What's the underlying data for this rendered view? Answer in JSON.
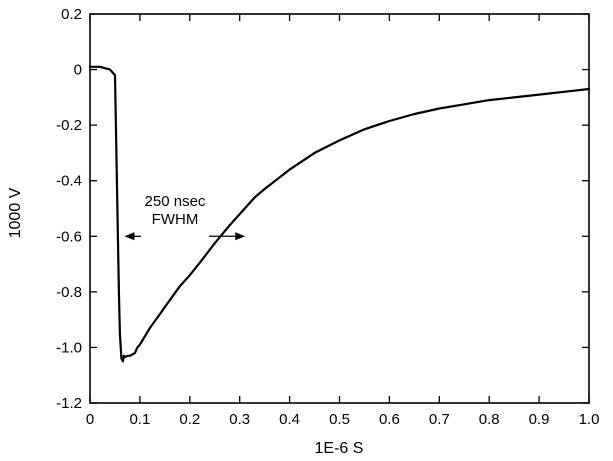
{
  "chart_data": {
    "type": "line",
    "title": "",
    "xlabel": "1E-6 S",
    "ylabel": "1000 V",
    "xlim": [
      0,
      1.0
    ],
    "ylim": [
      -1.2,
      0.2
    ],
    "x_ticks": [
      0,
      0.1,
      0.2,
      0.3,
      0.4,
      0.5,
      0.6,
      0.7,
      0.8,
      0.9,
      1.0
    ],
    "x_tick_labels": [
      "0",
      "0.1",
      "0.2",
      "0.3",
      "0.4",
      "0.5",
      "0.6",
      "0.7",
      "0.8",
      "0.9",
      "1.0"
    ],
    "y_ticks": [
      0.2,
      0,
      -0.2,
      -0.4,
      -0.6,
      -0.8,
      -1.0,
      -1.2
    ],
    "y_tick_labels": [
      "0.2",
      "0",
      "-0.2",
      "-0.4",
      "-0.6",
      "-0.8",
      "-1.0",
      "-1.2"
    ],
    "grid": false,
    "legend": "none",
    "series": [
      {
        "color": "#000000",
        "x": [
          0,
          0.01,
          0.02,
          0.03,
          0.04,
          0.05,
          0.052,
          0.055,
          0.058,
          0.06,
          0.063,
          0.066,
          0.068,
          0.07,
          0.075,
          0.08,
          0.085,
          0.09,
          0.095,
          0.1,
          0.11,
          0.12,
          0.13,
          0.14,
          0.15,
          0.16,
          0.18,
          0.2,
          0.22,
          0.25,
          0.28,
          0.3,
          0.33,
          0.35,
          0.4,
          0.45,
          0.5,
          0.55,
          0.6,
          0.65,
          0.7,
          0.75,
          0.8,
          0.85,
          0.9,
          0.95,
          1.0
        ],
        "y": [
          0.01,
          0.01,
          0.01,
          0.005,
          0.0,
          -0.02,
          -0.2,
          -0.5,
          -0.8,
          -0.95,
          -1.04,
          -1.05,
          -1.03,
          -1.035,
          -1.03,
          -1.03,
          -1.025,
          -1.02,
          -1.0,
          -0.99,
          -0.96,
          -0.93,
          -0.905,
          -0.88,
          -0.855,
          -0.83,
          -0.78,
          -0.74,
          -0.695,
          -0.625,
          -0.56,
          -0.52,
          -0.46,
          -0.43,
          -0.36,
          -0.3,
          -0.255,
          -0.215,
          -0.185,
          -0.16,
          -0.14,
          -0.125,
          -0.11,
          -0.1,
          -0.09,
          -0.08,
          -0.07
        ]
      }
    ],
    "annotations": [
      {
        "text": "250 nsec",
        "type": "label"
      },
      {
        "text": "FWHM",
        "type": "label",
        "arrow_left_x": 0.065,
        "arrow_right_x": 0.315,
        "arrow_y": -0.6
      }
    ]
  }
}
